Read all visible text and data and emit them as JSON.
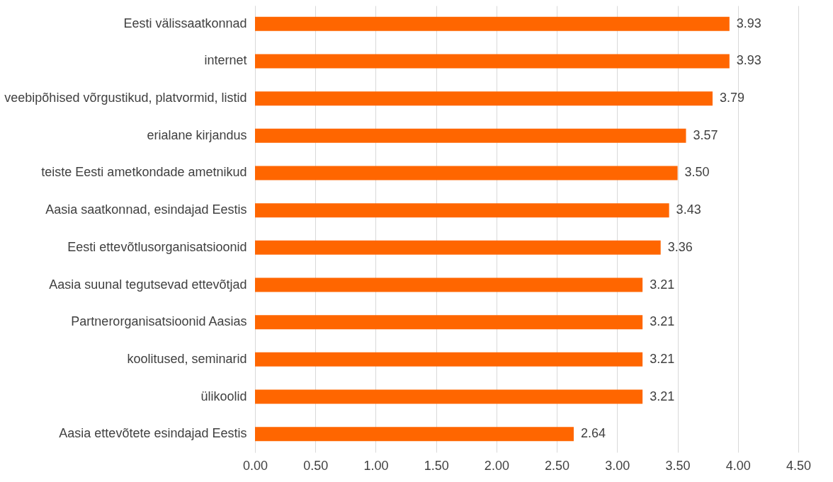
{
  "chart_data": {
    "type": "bar",
    "orientation": "horizontal",
    "categories": [
      "Eesti välissaatkonnad",
      "internet",
      "veebipõhised võrgustikud, platvormid, listid",
      "erialane kirjandus",
      "teiste Eesti ametkondade ametnikud",
      "Aasia saatkonnad, esindajad Eestis",
      "Eesti ettevõtlusorganisatsioonid",
      "Aasia suunal tegutsevad ettevõtjad",
      "Partnerorganisatsioonid Aasias",
      "koolitused, seminarid",
      "ülikoolid",
      "Aasia ettevõtete esindajad Eestis"
    ],
    "values": [
      3.93,
      3.93,
      3.79,
      3.57,
      3.5,
      3.43,
      3.36,
      3.21,
      3.21,
      3.21,
      3.21,
      2.64
    ],
    "value_labels": [
      "3.93",
      "3.93",
      "3.79",
      "3.57",
      "3.50",
      "3.43",
      "3.36",
      "3.21",
      "3.21",
      "3.21",
      "3.21",
      "2.64"
    ],
    "color": "#ff6600",
    "xlim": [
      0,
      4.5
    ],
    "xticks": [
      {
        "value": 0,
        "label": "0.00"
      },
      {
        "value": 0.5,
        "label": "0.50"
      },
      {
        "value": 1,
        "label": "1.00"
      },
      {
        "value": 1.5,
        "label": "1.50"
      },
      {
        "value": 2,
        "label": "2.00"
      },
      {
        "value": 2.5,
        "label": "2.50"
      },
      {
        "value": 3,
        "label": "3.00"
      },
      {
        "value": 3.5,
        "label": "3.50"
      },
      {
        "value": 4,
        "label": "4.00"
      },
      {
        "value": 4.5,
        "label": "4.50"
      }
    ],
    "grid": "x"
  }
}
